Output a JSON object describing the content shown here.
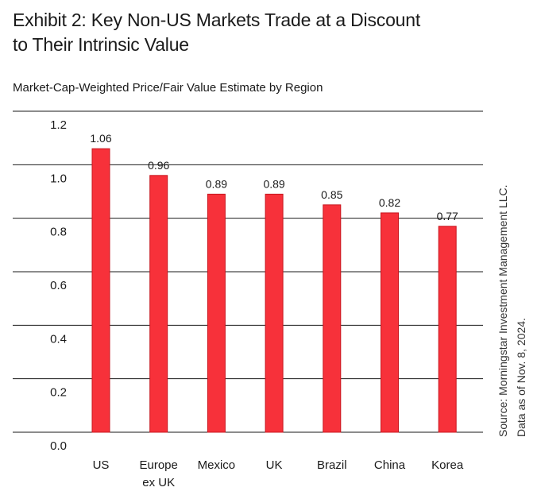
{
  "title": "Exhibit 2: Key Non-US Markets Trade at a Discount to Their Intrinsic Value",
  "subtitle": "Market-Cap-Weighted Price/Fair Value Estimate by Region",
  "source": {
    "line1": "Source: Morningstar Investment Management LLC.",
    "line2": "Data as of Nov. 8, 2024."
  },
  "colors": {
    "bar": "#f7313a",
    "bar_edge": "#c8161e",
    "grid": "#1a1a1a"
  },
  "chart_data": {
    "type": "bar",
    "categories": [
      [
        "US"
      ],
      [
        "Europe",
        "ex UK"
      ],
      [
        "Mexico"
      ],
      [
        "UK"
      ],
      [
        "Brazil"
      ],
      [
        "China"
      ],
      [
        "Korea"
      ]
    ],
    "values": [
      1.06,
      0.96,
      0.89,
      0.89,
      0.85,
      0.82,
      0.77
    ],
    "value_labels": [
      "1.06",
      "0.96",
      "0.89",
      "0.89",
      "0.85",
      "0.82",
      "0.77"
    ],
    "yticks": [
      "0.0",
      "0.2",
      "0.4",
      "0.6",
      "0.8",
      "1.0",
      "1.2"
    ],
    "ylim": [
      0,
      1.2
    ],
    "grid": true,
    "title": "Exhibit 2: Key Non-US Markets Trade at a Discount to Their Intrinsic Value",
    "subtitle": "Market-Cap-Weighted Price/Fair Value Estimate by Region",
    "xlabel": "",
    "ylabel": ""
  }
}
